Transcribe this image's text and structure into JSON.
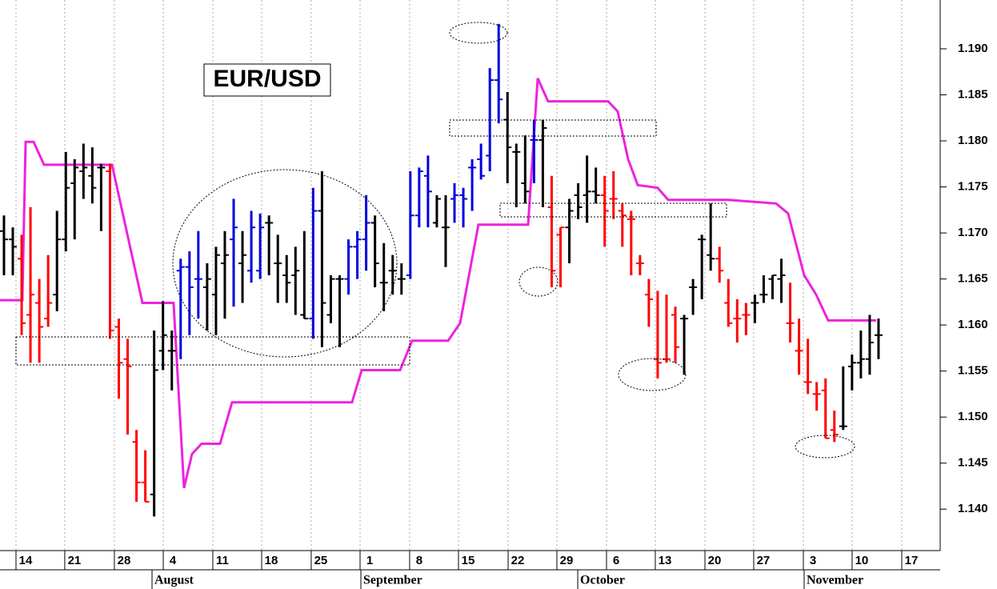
{
  "chart_data": {
    "type": "ohlc",
    "title": "EUR/USD",
    "xlim": [
      -0.45,
      105.98
    ],
    "ylim": [
      1.1355,
      1.1953
    ],
    "xticks": [
      {
        "value": 1.36,
        "label": "14"
      },
      {
        "value": 6.88,
        "label": "21"
      },
      {
        "value": 12.5,
        "label": "28"
      },
      {
        "value": 18.03,
        "label": "4"
      },
      {
        "value": 23.64,
        "label": "11"
      },
      {
        "value": 29.17,
        "label": "18"
      },
      {
        "value": 34.78,
        "label": "25"
      },
      {
        "value": 40.31,
        "label": "1"
      },
      {
        "value": 45.92,
        "label": "8"
      },
      {
        "value": 51.45,
        "label": "15"
      },
      {
        "value": 57.07,
        "label": "22"
      },
      {
        "value": 62.59,
        "label": "29"
      },
      {
        "value": 68.21,
        "label": "6"
      },
      {
        "value": 73.73,
        "label": "13"
      },
      {
        "value": 79.35,
        "label": "20"
      },
      {
        "value": 84.87,
        "label": "27"
      },
      {
        "value": 90.49,
        "label": "3"
      },
      {
        "value": 96.01,
        "label": "10"
      },
      {
        "value": 101.63,
        "label": "17"
      }
    ],
    "month_ticks": [
      {
        "value": 16.76,
        "label": "August"
      },
      {
        "value": 40.4,
        "label": "September"
      },
      {
        "value": 64.95,
        "label": "October"
      },
      {
        "value": 90.58,
        "label": "November"
      }
    ],
    "yticks": [
      {
        "value": 1.14,
        "label": "1.140"
      },
      1.145,
      {
        "value": 1.15,
        "label": "1.150"
      },
      1.155,
      {
        "value": 1.16,
        "label": "1.160"
      },
      1.165,
      {
        "value": 1.17,
        "label": "1.170"
      },
      1.175,
      {
        "value": 1.18,
        "label": "1.180"
      },
      1.185,
      {
        "value": 1.19,
        "label": "1.190"
      }
    ],
    "grid": true,
    "x": [
      0,
      1,
      2,
      3,
      4,
      5,
      6,
      7,
      8,
      9,
      10,
      11,
      12,
      13,
      14,
      15,
      16,
      17,
      18,
      19,
      20,
      21,
      22,
      23,
      24,
      25,
      26,
      27,
      28,
      29,
      30,
      31,
      32,
      33,
      34,
      35,
      36,
      37,
      38,
      39,
      40,
      41,
      42,
      43,
      44,
      45,
      46,
      47,
      48,
      49,
      50,
      51,
      52,
      53,
      54,
      55,
      56,
      57,
      58,
      59,
      60,
      61,
      62,
      63,
      64,
      65,
      66,
      67,
      68,
      69,
      70,
      71,
      72,
      73,
      74,
      75,
      76,
      77,
      78,
      79,
      80,
      81,
      82,
      83,
      84,
      85,
      86,
      87,
      88,
      89,
      90,
      91,
      92,
      93,
      94,
      95,
      96,
      97,
      98,
      99
    ],
    "open": [
      1.1702,
      1.1693,
      1.1672,
      1.1611,
      1.1624,
      1.1607,
      1.1633,
      1.1693,
      1.1754,
      1.1767,
      1.1762,
      1.1771,
      1.1767,
      1.1598,
      1.1563,
      1.1473,
      1.1429,
      1.1416,
      1.1572,
      1.1572,
      1.1659,
      1.1663,
      1.165,
      1.1641,
      1.1633,
      1.1667,
      1.1693,
      1.1667,
      1.1659,
      1.1659,
      1.1711,
      1.1667,
      1.1654,
      1.1654,
      1.1611,
      1.1607,
      1.1724,
      1.1611,
      1.165,
      1.165,
      1.1685,
      1.1693,
      1.1711,
      1.1646,
      1.1659,
      1.165,
      1.1654,
      1.1719,
      1.1762,
      1.1711,
      1.1706,
      1.1737,
      1.1741,
      1.1771,
      1.178,
      1.1784,
      1.1866,
      1.1823,
      1.1788,
      1.1754,
      1.1801,
      1.1801,
      1.1728,
      1.1698,
      1.1706,
      1.1741,
      1.1741,
      1.1745,
      1.1741,
      1.1737,
      1.1724,
      1.1715,
      1.1667,
      1.1633,
      1.1563,
      1.1563,
      1.1611,
      1.1607,
      1.1641,
      1.1693,
      1.1676,
      1.1672,
      1.1624,
      1.1607,
      1.1611,
      1.1624,
      1.1633,
      1.165,
      1.165,
      1.1602,
      1.1572,
      1.1538,
      1.1525,
      1.1529,
      1.1486,
      1.149,
      1.1555,
      1.1559,
      1.1563,
      1.1589
    ],
    "high": [
      1.1719,
      1.1706,
      1.1698,
      1.1728,
      1.165,
      1.1676,
      1.1724,
      1.1788,
      1.178,
      1.1797,
      1.1793,
      1.1775,
      1.1775,
      1.1607,
      1.1585,
      1.1486,
      1.1464,
      1.1594,
      1.1626,
      1.1594,
      1.1672,
      1.168,
      1.1702,
      1.1667,
      1.1685,
      1.1702,
      1.1737,
      1.1702,
      1.1724,
      1.1721,
      1.1719,
      1.1698,
      1.1676,
      1.1685,
      1.1702,
      1.1749,
      1.1767,
      1.1654,
      1.1654,
      1.1693,
      1.1702,
      1.1741,
      1.1719,
      1.1689,
      1.1676,
      1.1667,
      1.1767,
      1.1771,
      1.1784,
      1.1741,
      1.1741,
      1.1754,
      1.1749,
      1.178,
      1.1797,
      1.1879,
      1.1927,
      1.1853,
      1.1797,
      1.1806,
      1.1823,
      1.1823,
      1.1762,
      1.1706,
      1.1737,
      1.1754,
      1.1784,
      1.1771,
      1.1762,
      1.1767,
      1.1732,
      1.1724,
      1.1676,
      1.165,
      1.1637,
      1.1633,
      1.162,
      1.1611,
      1.165,
      1.1698,
      1.1732,
      1.1685,
      1.165,
      1.1628,
      1.1624,
      1.1633,
      1.1654,
      1.1654,
      1.1672,
      1.1646,
      1.1607,
      1.1585,
      1.1538,
      1.1542,
      1.1507,
      1.1555,
      1.1568,
      1.1594,
      1.1611,
      1.1607
    ],
    "low": [
      1.1654,
      1.1654,
      1.1589,
      1.1559,
      1.1559,
      1.1598,
      1.1615,
      1.168,
      1.1693,
      1.1737,
      1.1732,
      1.1702,
      1.1585,
      1.152,
      1.1481,
      1.1408,
      1.1408,
      1.1392,
      1.1551,
      1.1529,
      1.1563,
      1.1589,
      1.1607,
      1.1594,
      1.1589,
      1.1607,
      1.162,
      1.1624,
      1.1646,
      1.165,
      1.1654,
      1.1624,
      1.1624,
      1.1611,
      1.1607,
      1.1585,
      1.1576,
      1.1602,
      1.1576,
      1.1633,
      1.165,
      1.1659,
      1.1641,
      1.1615,
      1.1633,
      1.1633,
      1.165,
      1.1706,
      1.1706,
      1.1706,
      1.1663,
      1.1711,
      1.1706,
      1.1724,
      1.1758,
      1.1767,
      1.1819,
      1.1754,
      1.1728,
      1.1732,
      1.1754,
      1.1728,
      1.1641,
      1.1641,
      1.1667,
      1.1715,
      1.1711,
      1.1732,
      1.1685,
      1.1715,
      1.1685,
      1.1654,
      1.1654,
      1.1598,
      1.1542,
      1.1559,
      1.1559,
      1.1546,
      1.1611,
      1.1628,
      1.1659,
      1.1646,
      1.1598,
      1.1581,
      1.1589,
      1.1602,
      1.1624,
      1.1628,
      1.1624,
      1.1581,
      1.1546,
      1.1525,
      1.1507,
      1.1477,
      1.1473,
      1.1486,
      1.1529,
      1.1542,
      1.1546,
      1.1563
    ],
    "close": [
      1.1693,
      1.1685,
      1.1602,
      1.1633,
      1.1598,
      1.1624,
      1.1693,
      1.1749,
      1.1771,
      1.1771,
      1.1749,
      1.1771,
      1.1594,
      1.1559,
      1.1555,
      1.1429,
      1.1408,
      1.1551,
      1.1589,
      1.1572,
      1.1663,
      1.1641,
      1.165,
      1.165,
      1.1676,
      1.1676,
      1.1706,
      1.1676,
      1.1706,
      1.1706,
      1.1711,
      1.1667,
      1.1646,
      1.1659,
      1.1607,
      1.1724,
      1.1624,
      1.165,
      1.165,
      1.1685,
      1.1693,
      1.1711,
      1.1667,
      1.1646,
      1.1659,
      1.165,
      1.1719,
      1.1767,
      1.1745,
      1.1737,
      1.1706,
      1.1741,
      1.1737,
      1.1771,
      1.1762,
      1.1866,
      1.1845,
      1.1793,
      1.1788,
      1.1745,
      1.1801,
      1.1814,
      1.1659,
      1.1706,
      1.1724,
      1.1728,
      1.1745,
      1.1741,
      1.1724,
      1.1737,
      1.1719,
      1.1715,
      1.1667,
      1.1628,
      1.1559,
      1.1563,
      1.1576,
      1.1607,
      1.1641,
      1.1693,
      1.1672,
      1.1659,
      1.1602,
      1.1607,
      1.1611,
      1.1624,
      1.1633,
      1.1654,
      1.1654,
      1.1602,
      1.1572,
      1.1538,
      1.1525,
      1.1477,
      1.1481,
      1.149,
      1.1559,
      1.1563,
      1.1581,
      1.1589
    ],
    "colors": [
      "#000000",
      "#000000",
      "#ff0000",
      "#ff0000",
      "#ff0000",
      "#ff0000",
      "#000000",
      "#000000",
      "#000000",
      "#000000",
      "#000000",
      "#000000",
      "#ff0000",
      "#ff0000",
      "#ff0000",
      "#ff0000",
      "#ff0000",
      "#000000",
      "#000000",
      "#000000",
      "#0000dd",
      "#0000dd",
      "#0000dd",
      "#000000",
      "#000000",
      "#000000",
      "#0000dd",
      "#000000",
      "#0000dd",
      "#0000dd",
      "#000000",
      "#000000",
      "#000000",
      "#000000",
      "#000000",
      "#0000dd",
      "#000000",
      "#000000",
      "#000000",
      "#0000dd",
      "#0000dd",
      "#0000dd",
      "#000000",
      "#000000",
      "#000000",
      "#000000",
      "#0000dd",
      "#0000dd",
      "#0000dd",
      "#000000",
      "#000000",
      "#0000dd",
      "#0000dd",
      "#0000dd",
      "#0000dd",
      "#0000dd",
      "#0000dd",
      "#000000",
      "#000000",
      "#000000",
      "#0000dd",
      "#000000",
      "#ff0000",
      "#ff0000",
      "#000000",
      "#000000",
      "#000000",
      "#000000",
      "#ff0000",
      "#ff0000",
      "#ff0000",
      "#ff0000",
      "#ff0000",
      "#ff0000",
      "#ff0000",
      "#ff0000",
      "#ff0000",
      "#000000",
      "#000000",
      "#000000",
      "#000000",
      "#ff0000",
      "#ff0000",
      "#ff0000",
      "#ff0000",
      "#000000",
      "#000000",
      "#000000",
      "#000000",
      "#ff0000",
      "#ff0000",
      "#ff0000",
      "#ff0000",
      "#ff0000",
      "#ff0000",
      "#000000",
      "#000000",
      "#000000",
      "#000000",
      "#000000"
    ],
    "stop_line": {
      "color": "#ee22dd",
      "x": [
        -0.45,
        2.08,
        2.45,
        3.35,
        4.53,
        12.23,
        15.67,
        19.2,
        20.38,
        21.29,
        22.37,
        24.46,
        25.82,
        39.4,
        40.49,
        44.84,
        46.2,
        50.27,
        51.63,
        53.71,
        59.33,
        60.42,
        61.59,
        68.39,
        69.47,
        70.65,
        71.74,
        74.0,
        75.18,
        81.97,
        87.41,
        88.77,
        90.58,
        91.94,
        93.3,
        98.73
      ],
      "values": [
        1.1627,
        1.1627,
        1.1799,
        1.1799,
        1.1774,
        1.1774,
        1.1624,
        1.1624,
        1.1423,
        1.146,
        1.1471,
        1.1471,
        1.1516,
        1.1516,
        1.1551,
        1.1551,
        1.1583,
        1.1583,
        1.1602,
        1.1709,
        1.1709,
        1.1868,
        1.1843,
        1.1843,
        1.1832,
        1.178,
        1.1752,
        1.1749,
        1.1736,
        1.1736,
        1.1732,
        1.1721,
        1.1654,
        1.1633,
        1.1605,
        1.1605
      ]
    }
  }
}
